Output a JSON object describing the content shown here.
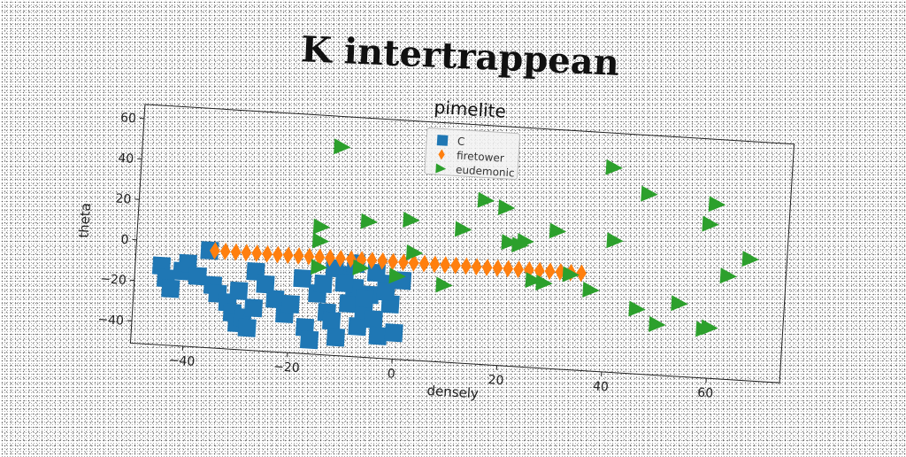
{
  "page_title": "K intertrappean",
  "chart_data": {
    "type": "scatter",
    "title": "pimelite",
    "xlabel": "densely",
    "ylabel": "theta",
    "xlim": [
      -50,
      74
    ],
    "ylim": [
      -51,
      67
    ],
    "xticks": [
      -40,
      -20,
      0,
      20,
      40,
      60
    ],
    "yticks": [
      -40,
      -20,
      0,
      20,
      40,
      60
    ],
    "grid": false,
    "legend_position": "top-center",
    "series": [
      {
        "name": "C",
        "marker": "square",
        "color": "#1f77b4",
        "x": [
          -45,
          -44,
          -43,
          -41,
          -40,
          -38,
          -35,
          -34,
          -32,
          -31,
          -30,
          -30,
          -29,
          -28,
          -27,
          -27,
          -25,
          -23,
          -21,
          -20,
          -18,
          -17,
          -16,
          -15,
          -14,
          -13,
          -12,
          -11,
          -10,
          -9,
          -8,
          -7,
          -6,
          -5,
          -4,
          -3,
          -2,
          -1,
          0,
          1,
          -12,
          -10,
          -8,
          -6,
          -4,
          -2,
          -36
        ],
        "y": [
          -12,
          -18,
          -23,
          -14,
          -10,
          -16,
          -20,
          -24,
          -28,
          -33,
          -38,
          -22,
          -35,
          -40,
          -12,
          -30,
          -18,
          -25,
          -32,
          -27,
          -14,
          -38,
          -44,
          -21,
          -16,
          -30,
          -34,
          -42,
          -11,
          -25,
          -17,
          -36,
          -28,
          -20,
          -32,
          -40,
          -14,
          -24,
          -38,
          -12,
          -8,
          -15,
          -5,
          -22,
          -9,
          -18,
          -3
        ]
      },
      {
        "name": "firetower",
        "marker": "thin_diamond",
        "color": "#ff7f0e",
        "x": [
          -35,
          -33,
          -31,
          -29,
          -27,
          -25,
          -23,
          -21,
          -19,
          -17,
          -15,
          -13,
          -11,
          -9,
          -7,
          -5,
          -3,
          -1,
          1,
          3,
          5,
          7,
          9,
          11,
          13,
          15,
          17,
          19,
          21,
          23,
          25,
          27,
          29,
          31,
          33,
          35
        ],
        "y": [
          -3,
          -3,
          -3,
          -3,
          -3,
          -3,
          -3,
          -3,
          -3,
          -3,
          -3,
          -3,
          -3,
          -3,
          -3,
          -3,
          -3,
          -3,
          -3,
          -3,
          -3,
          -3,
          -3,
          -3,
          -3,
          -3,
          -3,
          -3,
          -3,
          -3,
          -3,
          -3,
          -3,
          -3,
          -3,
          -3
        ]
      },
      {
        "name": "eudemonic",
        "marker": "triangle_right",
        "color": "#2ca02c",
        "x": [
          -12,
          -15,
          -15,
          -15,
          -6,
          -7,
          0,
          2,
          3,
          9,
          12,
          16,
          20,
          21,
          23,
          24,
          26,
          28,
          30,
          33,
          37,
          40,
          41,
          46,
          47,
          50,
          54,
          59,
          59,
          60,
          60,
          63,
          67
        ],
        "y": [
          52,
          12,
          5,
          -8,
          16,
          -7,
          -10,
          18,
          2,
          -13,
          15,
          30,
          27,
          10,
          9,
          11,
          -8,
          -9,
          17,
          -4,
          -11,
          50,
          14,
          -19,
          38,
          -26,
          -15,
          -27,
          25,
          35,
          -26,
          0,
          9
        ]
      }
    ]
  }
}
